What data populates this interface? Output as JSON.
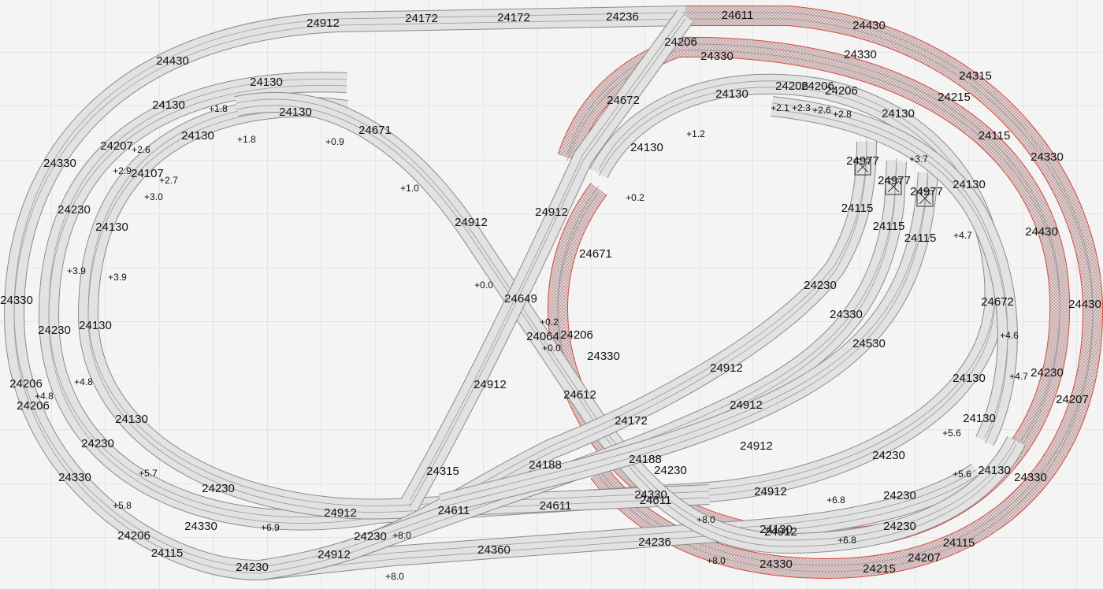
{
  "track_labels": [
    "24912",
    "24172",
    "24172",
    "24236",
    "24611",
    "24430",
    "24206",
    "24330",
    "24330",
    "24315",
    "24215",
    "24430",
    "24130",
    "24130",
    "24130",
    "24671",
    "24672",
    "24206",
    "24206",
    "24206",
    "24130",
    "24130",
    "24115",
    "24330",
    "24130",
    "24207",
    "24107",
    "24130",
    "24330",
    "24977",
    "24977",
    "24977",
    "24130",
    "24912",
    "24912",
    "24230",
    "24115",
    "24115",
    "24115",
    "24130",
    "24430",
    "24671",
    "24230",
    "24649",
    "24330",
    "24672",
    "24430",
    "24330",
    "24130",
    "24230",
    "24064",
    "24206",
    "24530",
    "24330",
    "24912",
    "24130",
    "24230",
    "24206",
    "24206",
    "24912",
    "24612",
    "24207",
    "24912",
    "24130",
    "24172",
    "24130",
    "24230",
    "24912",
    "24230",
    "24188",
    "24188",
    "24315",
    "24230",
    "24130",
    "24330",
    "24330",
    "24230",
    "24330",
    "24611",
    "24912",
    "24611",
    "24611",
    "24912",
    "24230",
    "24330",
    "24230",
    "24130",
    "24912",
    "24206",
    "24230",
    "24115",
    "24236",
    "24360",
    "24912",
    "24115",
    "24207",
    "24230",
    "24330",
    "24215"
  ],
  "height_labels": [
    "+1.8",
    "+1.8",
    "+0.9",
    "+1.0",
    "+2.6",
    "+2.9",
    "+2.7",
    "+3.0",
    "+1.2",
    "+2.1",
    "+2.3",
    "+2.6",
    "+2.8",
    "+3.7",
    "+0.2",
    "+4.7",
    "+3.9",
    "+3.9",
    "+0.0",
    "+0.2",
    "+0.0",
    "+4.6",
    "+4.8",
    "+4.8",
    "+4.7",
    "+5.6",
    "+5.7",
    "+5.6",
    "+5.8",
    "+6.8",
    "+8.0",
    "+6.9",
    "+8.0",
    "+6.8",
    "+8.0",
    "+8.0"
  ]
}
